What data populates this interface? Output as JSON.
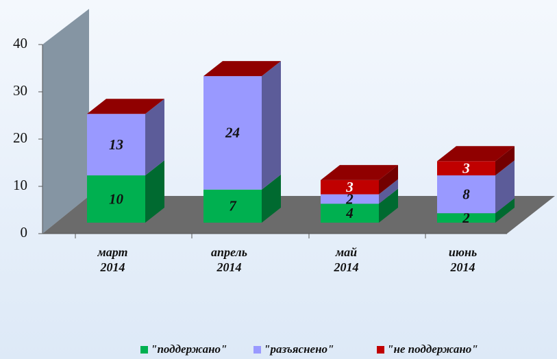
{
  "chart_data": {
    "type": "bar3d_stacked",
    "categories": [
      "март 2014",
      "апрель 2014",
      "май 2014",
      "июнь 2014"
    ],
    "series": [
      {
        "name": "\"поддержано\"",
        "color": "#00b050",
        "values": [
          10,
          7,
          4,
          2
        ]
      },
      {
        "name": "\"разъяснено\"",
        "color": "#9999ff",
        "values": [
          13,
          24,
          2,
          8
        ]
      },
      {
        "name": "\"не поддержано\"",
        "color": "#c00000",
        "values": [
          0,
          0,
          3,
          3
        ]
      }
    ],
    "ylim": [
      0,
      40
    ],
    "yticks": [
      0,
      10,
      20,
      30,
      40
    ],
    "legend": "bottom"
  }
}
